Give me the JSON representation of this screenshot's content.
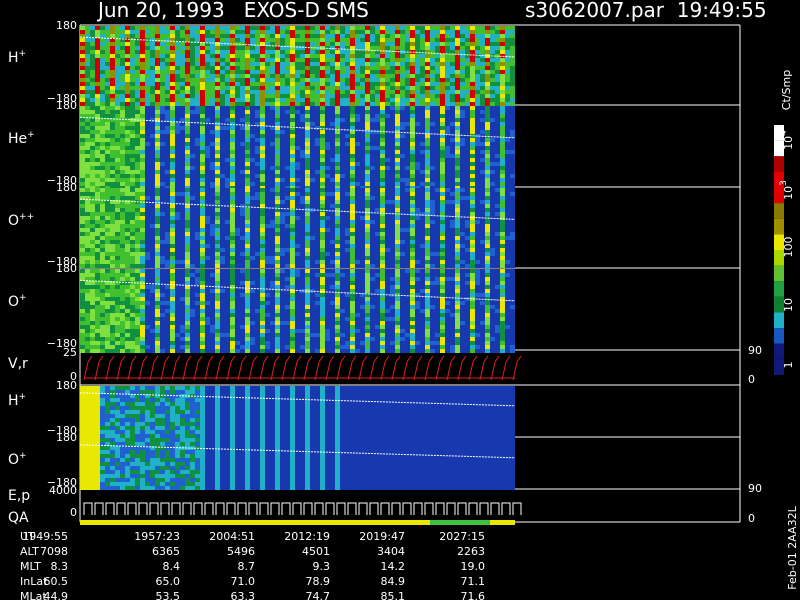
{
  "header": {
    "title": "Jun 20, 1993   EXOS-D SMS",
    "file": "s3062007.par  19:49:55"
  },
  "panels": [
    {
      "label": "H",
      "sup": "+",
      "top": "180",
      "bottom": "−180"
    },
    {
      "label": "He",
      "sup": "+",
      "top": "180",
      "bottom": "−180"
    },
    {
      "label": "O",
      "sup": "++",
      "top": "180",
      "bottom": "−180"
    },
    {
      "label": "O",
      "sup": "+",
      "top": "180",
      "bottom": "−180"
    },
    {
      "label": "H",
      "sup": "+",
      "top": "180",
      "bottom": "−180"
    },
    {
      "label": "O",
      "sup": "+",
      "top": "180",
      "bottom": "−180"
    }
  ],
  "vr": {
    "label": "V,r",
    "top": "25",
    "bottom": "0",
    "right_top": "90",
    "right_bottom": "0"
  },
  "ep": {
    "label": "E,p",
    "label2": "QA",
    "top": "4000",
    "bottom": "0",
    "right_top": "90",
    "right_bottom": "0"
  },
  "colorbar": {
    "title": "Ct/Smp",
    "ticks": [
      {
        "base": "10",
        "exp": "4"
      },
      {
        "base": "10",
        "exp": "3"
      },
      {
        "base": "100"
      },
      {
        "base": "10"
      },
      {
        "base": "1"
      }
    ]
  },
  "footer": {
    "rows": [
      [
        "UT",
        "1949:55",
        "1957:23",
        "2004:51",
        "2012:19",
        "2019:47",
        "2027:15"
      ],
      [
        "ALT",
        "7098",
        "6365",
        "5496",
        "4501",
        "3404",
        "2263"
      ],
      [
        "MLT",
        "8.3",
        "8.4",
        "8.7",
        "9.3",
        "14.2",
        "19.0"
      ],
      [
        "InLat",
        "60.5",
        "65.0",
        "71.0",
        "78.9",
        "84.9",
        "71.1"
      ],
      [
        "MLat",
        "44.9",
        "53.5",
        "63.3",
        "74.7",
        "85.1",
        "71.6"
      ]
    ]
  },
  "stamp": "Feb-01 2AA32L"
}
